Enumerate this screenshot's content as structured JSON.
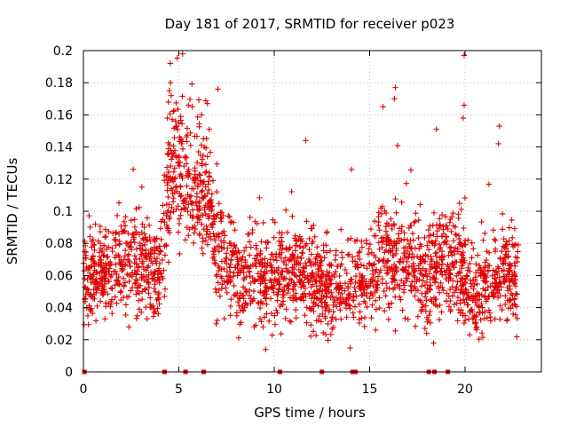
{
  "chart_data": {
    "type": "scatter",
    "title": "Day 181 of 2017, SRMTID for receiver p023",
    "xlabel": "GPS time / hours",
    "ylabel": "SRMTID / TECUs",
    "xlim": [
      0,
      24
    ],
    "ylim": [
      0,
      0.2
    ],
    "xticks": [
      0,
      5,
      10,
      15,
      20
    ],
    "xtick_labels": [
      "0",
      "5",
      "10",
      "15",
      "20"
    ],
    "yticks": [
      0,
      0.02,
      0.04,
      0.06,
      0.08,
      0.1,
      0.12,
      0.14,
      0.16,
      0.18,
      0.2
    ],
    "ytick_labels": [
      "0",
      "0.02",
      "0.04",
      "0.06",
      "0.08",
      "0.1",
      "0.12",
      "0.14",
      "0.16",
      "0.18",
      "0.2"
    ],
    "grid": true,
    "marker": "+",
    "color": "#e00000",
    "zero_markers_x": [
      0.05,
      4.25,
      5.35,
      6.3,
      10.3,
      12.5,
      14.1,
      14.25,
      18.1,
      18.4,
      19.1
    ],
    "series": [
      {
        "name": "SRMTID",
        "profile": [
          {
            "x": 0.0,
            "y": 0.055,
            "spread": 0.014
          },
          {
            "x": 1.0,
            "y": 0.062,
            "spread": 0.015
          },
          {
            "x": 2.0,
            "y": 0.068,
            "spread": 0.017
          },
          {
            "x": 3.0,
            "y": 0.068,
            "spread": 0.018
          },
          {
            "x": 4.0,
            "y": 0.062,
            "spread": 0.016
          },
          {
            "x": 4.3,
            "y": 0.1,
            "spread": 0.02
          },
          {
            "x": 4.7,
            "y": 0.13,
            "spread": 0.022
          },
          {
            "x": 5.2,
            "y": 0.12,
            "spread": 0.022
          },
          {
            "x": 5.8,
            "y": 0.12,
            "spread": 0.02
          },
          {
            "x": 6.5,
            "y": 0.11,
            "spread": 0.022
          },
          {
            "x": 7.0,
            "y": 0.072,
            "spread": 0.018
          },
          {
            "x": 8.0,
            "y": 0.06,
            "spread": 0.015
          },
          {
            "x": 9.5,
            "y": 0.058,
            "spread": 0.015
          },
          {
            "x": 11.0,
            "y": 0.062,
            "spread": 0.017
          },
          {
            "x": 12.5,
            "y": 0.05,
            "spread": 0.015
          },
          {
            "x": 14.0,
            "y": 0.05,
            "spread": 0.014
          },
          {
            "x": 15.5,
            "y": 0.068,
            "spread": 0.018
          },
          {
            "x": 17.0,
            "y": 0.068,
            "spread": 0.018
          },
          {
            "x": 18.5,
            "y": 0.062,
            "spread": 0.017
          },
          {
            "x": 19.5,
            "y": 0.07,
            "spread": 0.02
          },
          {
            "x": 20.5,
            "y": 0.048,
            "spread": 0.015
          },
          {
            "x": 21.5,
            "y": 0.058,
            "spread": 0.016
          },
          {
            "x": 22.8,
            "y": 0.056,
            "spread": 0.016
          }
        ],
        "highlights": [
          {
            "x": 4.55,
            "y": 0.192
          },
          {
            "x": 4.5,
            "y": 0.175
          },
          {
            "x": 4.6,
            "y": 0.172
          },
          {
            "x": 4.45,
            "y": 0.168
          },
          {
            "x": 4.4,
            "y": 0.158
          },
          {
            "x": 5.0,
            "y": 0.155
          },
          {
            "x": 5.5,
            "y": 0.166
          },
          {
            "x": 5.7,
            "y": 0.165
          },
          {
            "x": 6.5,
            "y": 0.167
          },
          {
            "x": 7.05,
            "y": 0.176
          },
          {
            "x": 11.65,
            "y": 0.144
          },
          {
            "x": 14.05,
            "y": 0.126
          },
          {
            "x": 15.7,
            "y": 0.165
          },
          {
            "x": 16.35,
            "y": 0.177
          },
          {
            "x": 16.3,
            "y": 0.17
          },
          {
            "x": 18.5,
            "y": 0.151
          },
          {
            "x": 19.95,
            "y": 0.197
          },
          {
            "x": 19.95,
            "y": 0.166
          },
          {
            "x": 19.9,
            "y": 0.158
          },
          {
            "x": 21.8,
            "y": 0.153
          },
          {
            "x": 21.75,
            "y": 0.142
          },
          {
            "x": 9.55,
            "y": 0.014
          },
          {
            "x": 18.35,
            "y": 0.018
          }
        ]
      }
    ]
  }
}
